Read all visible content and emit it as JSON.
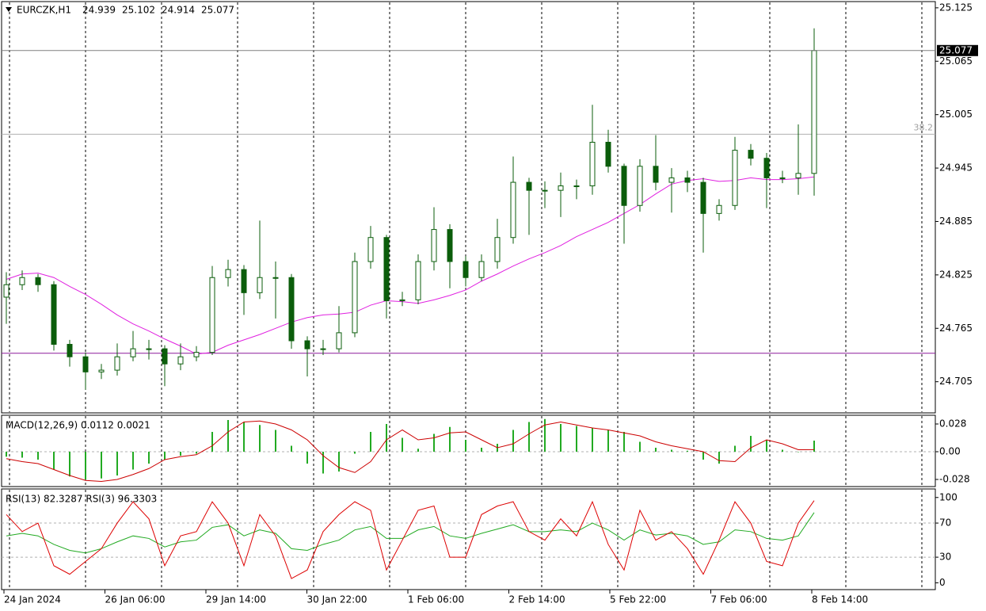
{
  "chart_data": [
    {
      "type": "candlestick",
      "title": "EURCZK,H1",
      "open": [
        24.8,
        24.814,
        24.822,
        24.814,
        24.747,
        24.733,
        24.716,
        24.718,
        24.733,
        24.742,
        24.742,
        24.725,
        24.733,
        24.738,
        24.822,
        24.831,
        24.805,
        24.822,
        24.822,
        24.751,
        24.742,
        24.742,
        24.76,
        24.84,
        24.867,
        24.796,
        24.797,
        24.84,
        24.876,
        24.84,
        24.822,
        24.84,
        24.867,
        24.929,
        24.92,
        24.92,
        24.925,
        24.925,
        24.974,
        24.947,
        24.903,
        24.947,
        24.929,
        24.934,
        24.929,
        24.894,
        24.903,
        24.965,
        24.956,
        24.934,
        24.934,
        24.939
      ],
      "high": [
        24.828,
        24.83,
        24.826,
        24.818,
        24.752,
        24.738,
        24.725,
        24.748,
        24.762,
        24.752,
        24.746,
        24.748,
        24.745,
        24.835,
        24.842,
        24.836,
        24.886,
        24.84,
        24.826,
        24.756,
        24.752,
        24.79,
        24.85,
        24.88,
        24.87,
        24.806,
        24.848,
        24.901,
        24.882,
        24.846,
        24.848,
        24.888,
        24.958,
        24.934,
        24.93,
        24.94,
        24.932,
        25.016,
        24.988,
        24.95,
        24.955,
        24.982,
        24.945,
        24.942,
        24.934,
        24.91,
        24.98,
        24.972,
        24.962,
        24.942,
        24.994,
        25.102
      ],
      "low": [
        24.77,
        24.808,
        24.806,
        24.74,
        24.722,
        24.696,
        24.708,
        24.712,
        24.728,
        24.73,
        24.7,
        24.718,
        24.728,
        24.735,
        24.812,
        24.78,
        24.798,
        24.776,
        24.742,
        24.711,
        24.735,
        24.738,
        24.755,
        24.832,
        24.776,
        24.79,
        24.792,
        24.83,
        24.81,
        24.812,
        24.818,
        24.832,
        24.86,
        24.87,
        24.9,
        24.89,
        24.91,
        24.915,
        24.94,
        24.86,
        24.896,
        24.92,
        24.895,
        24.918,
        24.85,
        24.886,
        24.898,
        24.948,
        24.9,
        24.928,
        24.915,
        24.914
      ],
      "close": [
        24.814,
        24.822,
        24.814,
        24.747,
        24.733,
        24.716,
        24.718,
        24.733,
        24.742,
        24.742,
        24.725,
        24.733,
        24.738,
        24.822,
        24.831,
        24.805,
        24.822,
        24.822,
        24.751,
        24.742,
        24.742,
        24.76,
        24.84,
        24.867,
        24.796,
        24.797,
        24.84,
        24.876,
        24.84,
        24.822,
        24.84,
        24.867,
        24.929,
        24.92,
        24.92,
        24.925,
        24.925,
        24.974,
        24.947,
        24.903,
        24.947,
        24.929,
        24.934,
        24.929,
        24.894,
        24.903,
        24.965,
        24.956,
        24.934,
        24.934,
        24.939,
        25.077
      ],
      "up_color": "#ffffff",
      "down_color": "#0b5d0b",
      "wick_color": "#0b5d0b",
      "ma": {
        "color": "#e020e0",
        "values": [
          24.82,
          24.826,
          24.827,
          24.822,
          24.812,
          24.803,
          24.792,
          24.78,
          24.77,
          24.762,
          24.753,
          24.745,
          24.736,
          24.738,
          24.746,
          24.752,
          24.758,
          24.765,
          24.772,
          24.777,
          24.78,
          24.781,
          24.783,
          24.791,
          24.796,
          24.795,
          24.793,
          24.797,
          24.802,
          24.808,
          24.818,
          24.826,
          24.835,
          24.843,
          24.85,
          24.858,
          24.868,
          24.876,
          24.884,
          24.894,
          24.904,
          24.916,
          24.927,
          24.931,
          24.933,
          24.93,
          24.931,
          24.934,
          24.932,
          24.932,
          24.933,
          24.935
        ]
      },
      "fib_level": {
        "value": 24.983,
        "label": "38.2"
      },
      "hline": {
        "value": 24.737,
        "color": "#8b1a9b"
      },
      "ylim": [
        24.67,
        25.132
      ],
      "yticks": [
        25.125,
        25.065,
        25.005,
        24.945,
        24.885,
        24.825,
        24.765,
        24.705
      ],
      "x_labels": [
        "24 Jan 2024",
        "26 Jan 06:00",
        "29 Jan 14:00",
        "30 Jan 22:00",
        "1 Feb 06:00",
        "2 Feb 14:00",
        "5 Feb 22:00",
        "7 Feb 06:00",
        "8 Feb 14:00"
      ]
    },
    {
      "type": "macd",
      "title": "MACD(12,26,9) 0.0112 0.0021",
      "histogram": {
        "color": "#22aa22",
        "values": [
          -0.005,
          -0.006,
          -0.008,
          -0.018,
          -0.025,
          -0.028,
          -0.027,
          -0.024,
          -0.018,
          -0.012,
          -0.008,
          -0.004,
          -0.002,
          0.02,
          0.032,
          0.03,
          0.027,
          0.022,
          0.006,
          -0.012,
          -0.022,
          -0.02,
          -0.002,
          0.02,
          0.028,
          0.014,
          0.003,
          0.018,
          0.025,
          0.012,
          0.004,
          0.008,
          0.022,
          0.03,
          0.033,
          0.028,
          0.026,
          0.024,
          0.022,
          0.02,
          0.01,
          0.004,
          0.002,
          0.001,
          -0.008,
          -0.012,
          0.006,
          0.016,
          0.012,
          0.002,
          0.0,
          0.0112
        ]
      },
      "signal": {
        "color": "#cc0000",
        "values": [
          -0.007,
          -0.01,
          -0.012,
          -0.018,
          -0.024,
          -0.029,
          -0.03,
          -0.028,
          -0.023,
          -0.017,
          -0.008,
          -0.005,
          -0.003,
          0.006,
          0.02,
          0.03,
          0.031,
          0.028,
          0.022,
          0.012,
          -0.004,
          -0.016,
          -0.021,
          -0.01,
          0.012,
          0.022,
          0.012,
          0.014,
          0.019,
          0.02,
          0.012,
          0.004,
          0.008,
          0.018,
          0.027,
          0.03,
          0.027,
          0.024,
          0.022,
          0.019,
          0.016,
          0.01,
          0.006,
          0.003,
          0.0,
          -0.009,
          -0.01,
          0.004,
          0.012,
          0.008,
          0.002,
          0.0021
        ]
      },
      "ylim": [
        -0.0352,
        0.0368
      ],
      "yticks": [
        0.028,
        {
          "value": 0,
          "label": "0.00"
        },
        -0.028
      ]
    },
    {
      "type": "rsi",
      "title": "RSI(13) 82.3287 RSI(3) 96.3303",
      "series": [
        {
          "color": "#22aa22",
          "values": [
            55,
            58,
            55,
            45,
            38,
            35,
            40,
            48,
            55,
            52,
            42,
            48,
            50,
            65,
            68,
            55,
            62,
            58,
            40,
            38,
            45,
            50,
            62,
            66,
            52,
            52,
            62,
            66,
            55,
            52,
            58,
            63,
            68,
            60,
            60,
            62,
            60,
            70,
            62,
            50,
            62,
            56,
            58,
            55,
            45,
            48,
            62,
            60,
            52,
            50,
            55,
            82.3287
          ]
        },
        {
          "color": "#dd0000",
          "values": [
            80,
            60,
            70,
            20,
            10,
            25,
            40,
            70,
            95,
            75,
            20,
            55,
            60,
            95,
            70,
            20,
            80,
            55,
            5,
            15,
            60,
            80,
            95,
            85,
            15,
            50,
            85,
            90,
            30,
            30,
            80,
            90,
            95,
            60,
            50,
            75,
            55,
            95,
            45,
            15,
            85,
            50,
            60,
            40,
            10,
            50,
            95,
            70,
            25,
            20,
            70,
            96.3303
          ]
        }
      ],
      "ylim": [
        -8,
        110
      ],
      "yticks": [
        0,
        30,
        70,
        100
      ],
      "dashed_levels": [
        30,
        70
      ]
    }
  ]
}
